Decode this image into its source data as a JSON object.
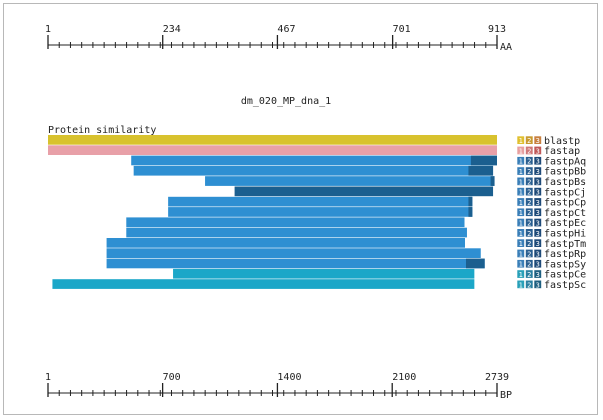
{
  "diagram": {
    "title": "dm_020_MP_dna_1",
    "section_label": "Protein similarity",
    "top_ruler": {
      "start": 1,
      "end": 913,
      "labels": [
        "1",
        "234",
        "467",
        "701",
        "913"
      ],
      "unit": "AA"
    },
    "bottom_ruler": {
      "start": 1,
      "end": 2739,
      "labels": [
        "1",
        "700",
        "1400",
        "2100",
        "2739"
      ],
      "unit": "BP"
    },
    "colors": {
      "blastp": "#d8c22e",
      "fastap": "#e8a0a8",
      "hit_blue": "#2e8fd2",
      "hit_dark": "#1b5f8f",
      "hit_cyan": "#1ba7c8",
      "box_1": "#e0c040",
      "box_2": "#b89030",
      "box_3": "#a07020"
    },
    "tracks": [
      {
        "name": "blastp",
        "start": 1,
        "end": 913,
        "color": "blastp",
        "box_color": "yellow"
      },
      {
        "name": "fastap",
        "start": 1,
        "end": 913,
        "color": "fastap",
        "box_color": "pink"
      },
      {
        "name": "fastpAq",
        "start": 170,
        "end": 913,
        "color": "hit_blue",
        "dark_from": 860,
        "box_color": "blue"
      },
      {
        "name": "fastpBb",
        "start": 175,
        "end": 905,
        "color": "hit_blue",
        "dark_from": 855,
        "box_color": "blue"
      },
      {
        "name": "fastpBs",
        "start": 320,
        "end": 908,
        "color": "hit_blue",
        "dark_from": 900,
        "box_color": "blue"
      },
      {
        "name": "fastpCj",
        "start": 380,
        "end": 905,
        "color": "hit_dark",
        "dark_from": 380,
        "box_color": "blue"
      },
      {
        "name": "fastpCp",
        "start": 245,
        "end": 863,
        "color": "hit_blue",
        "dark_from": 855,
        "box_color": "blue"
      },
      {
        "name": "fastpCt",
        "start": 245,
        "end": 863,
        "color": "hit_blue",
        "dark_from": 855,
        "box_color": "blue"
      },
      {
        "name": "fastpEc",
        "start": 160,
        "end": 847,
        "color": "hit_blue",
        "dark_from": 913,
        "box_color": "blue"
      },
      {
        "name": "fastpHi",
        "start": 160,
        "end": 852,
        "color": "hit_blue",
        "dark_from": 913,
        "box_color": "blue"
      },
      {
        "name": "fastpTm",
        "start": 120,
        "end": 848,
        "color": "hit_blue",
        "dark_from": 913,
        "box_color": "blue"
      },
      {
        "name": "fastpRp",
        "start": 120,
        "end": 880,
        "color": "hit_blue",
        "dark_from": 913,
        "box_color": "blue"
      },
      {
        "name": "fastpSy",
        "start": 120,
        "end": 888,
        "color": "hit_blue",
        "dark_from": 850,
        "box_color": "blue"
      },
      {
        "name": "fastpCe",
        "start": 255,
        "end": 867,
        "color": "hit_cyan",
        "dark_from": 913,
        "box_color": "teal"
      },
      {
        "name": "fastpSc",
        "start": 10,
        "end": 867,
        "color": "hit_cyan",
        "dark_from": 913,
        "box_color": "teal"
      }
    ],
    "legend_box_labels": [
      "1",
      "2",
      "3"
    ]
  }
}
